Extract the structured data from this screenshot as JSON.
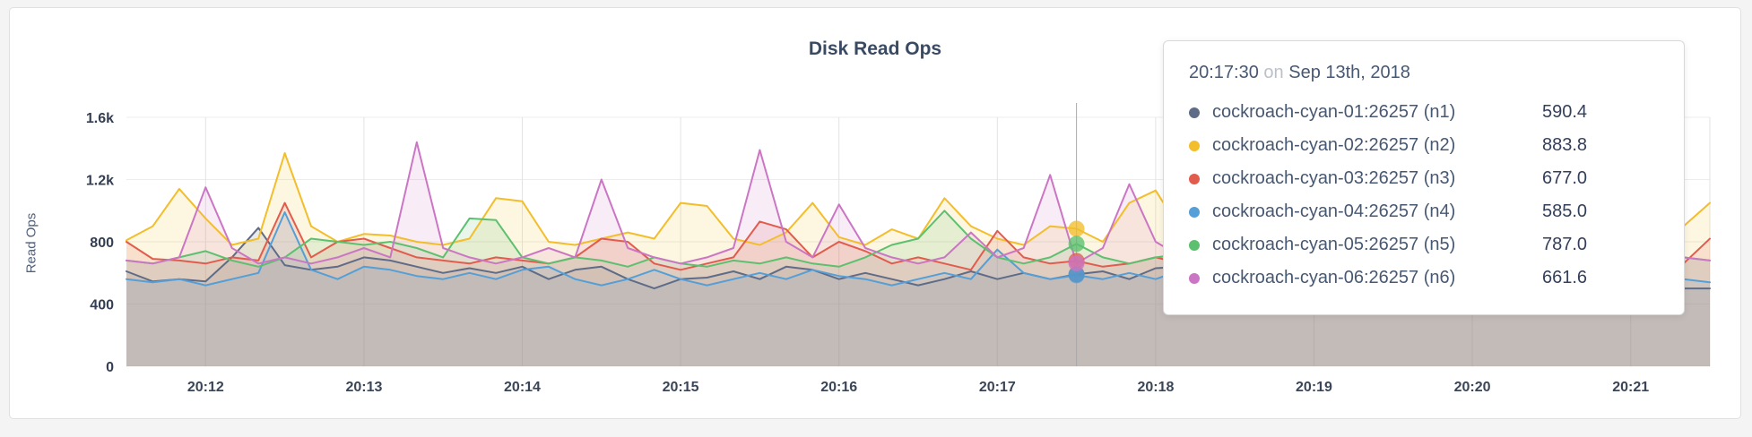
{
  "chart": {
    "title": "Disk Read Ops",
    "ylabel": "Read Ops"
  },
  "tooltip": {
    "time": "20:17:30",
    "on_word": "on",
    "date": "Sep 13th, 2018",
    "series": [
      {
        "name": "cockroach-cyan-01:26257 (n1)",
        "value": "590.4",
        "color": "#5F6C87"
      },
      {
        "name": "cockroach-cyan-02:26257 (n2)",
        "value": "883.8",
        "color": "#F2BE2C"
      },
      {
        "name": "cockroach-cyan-03:26257 (n3)",
        "value": "677.0",
        "color": "#E25C4D"
      },
      {
        "name": "cockroach-cyan-04:26257 (n4)",
        "value": "585.0",
        "color": "#549FD7"
      },
      {
        "name": "cockroach-cyan-05:26257 (n5)",
        "value": "787.0",
        "color": "#5DC06F"
      },
      {
        "name": "cockroach-cyan-06:26257 (n6)",
        "value": "661.6",
        "color": "#CB76C4"
      }
    ]
  },
  "chart_data": {
    "type": "area",
    "title": "Disk Read Ops",
    "ylabel": "Read Ops",
    "xlabel": "",
    "grid": true,
    "legend": "tooltip",
    "ylim": [
      0,
      1600
    ],
    "y_ticks": [
      0,
      400,
      800,
      1200,
      1600
    ],
    "y_tick_labels": [
      "0",
      "400",
      "800",
      "1.2k",
      "1.6k"
    ],
    "x_start_label": "20:11:30",
    "x_interval_seconds": 10,
    "x_tick_labels": [
      "20:12",
      "20:13",
      "20:14",
      "20:15",
      "20:16",
      "20:17",
      "20:18",
      "20:19",
      "20:20",
      "20:21"
    ],
    "x_tick_offsets_seconds": [
      30,
      90,
      150,
      210,
      270,
      330,
      390,
      450,
      510,
      570
    ],
    "crosshair": {
      "time_label": "20:17:30",
      "offset_seconds": 360
    },
    "series": [
      {
        "name": "cockroach-cyan-01:26257 (n1)",
        "color": "#5F6C87",
        "values": [
          610,
          545,
          560,
          545,
          700,
          890,
          650,
          620,
          640,
          700,
          680,
          640,
          600,
          630,
          600,
          640,
          560,
          620,
          640,
          560,
          500,
          560,
          570,
          610,
          560,
          640,
          620,
          560,
          600,
          560,
          520,
          560,
          610,
          560,
          600,
          560,
          590.4,
          610,
          560,
          630,
          640,
          600,
          560,
          600,
          560,
          580,
          560,
          600,
          560,
          540,
          560,
          600,
          560,
          540,
          560,
          520,
          560,
          580,
          560,
          500,
          500
        ]
      },
      {
        "name": "cockroach-cyan-02:26257 (n2)",
        "color": "#F2BE2C",
        "values": [
          810,
          900,
          1140,
          950,
          780,
          820,
          1370,
          900,
          800,
          850,
          840,
          800,
          780,
          820,
          1080,
          1060,
          800,
          780,
          820,
          860,
          820,
          1050,
          1030,
          820,
          780,
          860,
          1050,
          830,
          780,
          880,
          820,
          1080,
          900,
          820,
          780,
          900,
          883.8,
          800,
          1050,
          1130,
          860,
          800,
          860,
          900,
          820,
          860,
          800,
          860,
          820,
          780,
          860,
          820,
          900,
          820,
          860,
          820,
          780,
          820,
          1080,
          900,
          1050
        ]
      },
      {
        "name": "cockroach-cyan-03:26257 (n3)",
        "color": "#E25C4D",
        "values": [
          800,
          690,
          680,
          660,
          700,
          680,
          1050,
          700,
          800,
          820,
          760,
          700,
          680,
          660,
          700,
          680,
          660,
          700,
          820,
          800,
          660,
          620,
          660,
          700,
          930,
          880,
          700,
          800,
          740,
          660,
          700,
          660,
          620,
          870,
          700,
          660,
          677,
          640,
          660,
          700,
          660,
          620,
          660,
          640,
          660,
          620,
          660,
          700,
          660,
          620,
          660,
          700,
          660,
          620,
          660,
          700,
          660,
          640,
          900,
          660,
          820
        ]
      },
      {
        "name": "cockroach-cyan-04:26257 (n4)",
        "color": "#549FD7",
        "values": [
          560,
          540,
          560,
          520,
          560,
          600,
          990,
          620,
          560,
          640,
          620,
          580,
          560,
          600,
          560,
          620,
          640,
          560,
          520,
          560,
          620,
          560,
          520,
          560,
          600,
          560,
          620,
          580,
          560,
          520,
          560,
          600,
          560,
          750,
          600,
          560,
          585,
          560,
          600,
          560,
          620,
          560,
          520,
          560,
          600,
          560,
          540,
          560,
          600,
          560,
          520,
          560,
          600,
          560,
          540,
          560,
          520,
          560,
          600,
          560,
          540
        ]
      },
      {
        "name": "cockroach-cyan-05:26257 (n5)",
        "color": "#5DC06F",
        "values": [
          680,
          660,
          700,
          740,
          680,
          640,
          700,
          820,
          800,
          780,
          800,
          760,
          700,
          950,
          940,
          700,
          660,
          700,
          680,
          640,
          700,
          660,
          640,
          680,
          660,
          700,
          660,
          640,
          700,
          780,
          820,
          1000,
          820,
          700,
          660,
          700,
          787,
          700,
          660,
          700,
          720,
          680,
          640,
          680,
          700,
          660,
          680,
          640,
          680,
          660,
          640,
          680,
          660,
          640,
          680,
          660,
          640,
          680,
          660,
          700,
          680
        ]
      },
      {
        "name": "cockroach-cyan-06:26257 (n6)",
        "color": "#CB76C4",
        "values": [
          680,
          660,
          700,
          1150,
          760,
          660,
          700,
          660,
          700,
          760,
          700,
          1440,
          760,
          700,
          660,
          700,
          760,
          700,
          1200,
          760,
          700,
          660,
          700,
          760,
          1390,
          800,
          700,
          1040,
          760,
          700,
          660,
          700,
          860,
          700,
          760,
          1230,
          661.6,
          760,
          1170,
          800,
          700,
          660,
          700,
          760,
          700,
          660,
          700,
          760,
          700,
          660,
          700,
          760,
          700,
          660,
          700,
          760,
          700,
          800,
          760,
          700,
          680
        ]
      }
    ]
  }
}
